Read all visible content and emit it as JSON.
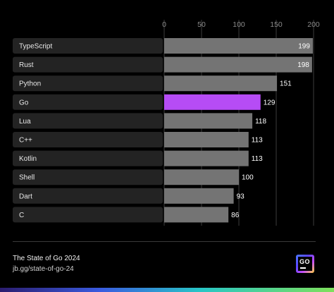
{
  "chart_data": {
    "type": "bar",
    "orientation": "horizontal",
    "categories": [
      "TypeScript",
      "Rust",
      "Python",
      "Go",
      "Lua",
      "C++",
      "Kotlin",
      "Shell",
      "Dart",
      "C"
    ],
    "values": [
      199,
      198,
      151,
      129,
      118,
      113,
      113,
      100,
      93,
      86
    ],
    "xticks": [
      0,
      50,
      100,
      150,
      200
    ],
    "xlim": [
      0,
      200
    ],
    "highlight": "Go",
    "colors": {
      "bar": "#747474",
      "highlight": "#b64cf5",
      "label_bg": "#232323"
    },
    "grid": true
  },
  "footer": {
    "title": "The State of Go 2024",
    "url": "jb.gg/state-of-go-24",
    "logo_text": "GO"
  }
}
